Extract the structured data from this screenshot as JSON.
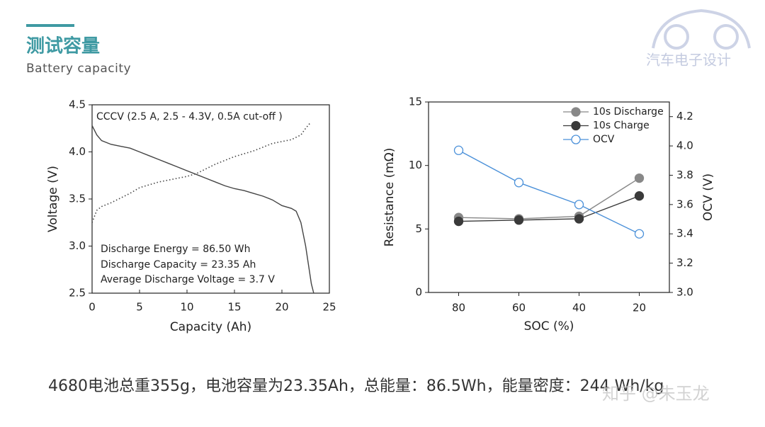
{
  "header": {
    "title": "测试容量",
    "subtitle": "Battery  capacity"
  },
  "logo": {
    "text": "汽车电子设计"
  },
  "caption": "4680电池总重355g，电池容量为23.35Ah，总能量：86.5Wh，能量密度：244 Wh/kg",
  "watermark": "知乎 @朱玉龙",
  "chart_data": [
    {
      "type": "line",
      "xlabel": "Capacity (Ah)",
      "ylabel": "Voltage (V)",
      "xlim": [
        0,
        25
      ],
      "ylim": [
        2.5,
        4.5
      ],
      "xticks": [
        0,
        5,
        10,
        15,
        20,
        25
      ],
      "yticks": [
        {
          "value": 2.5,
          "label": "2.5"
        },
        {
          "value": 3,
          "label": "3.0"
        },
        3.5,
        {
          "value": 4,
          "label": "4.0"
        },
        4.5
      ],
      "annotations": [
        "CCCV (2.5 A, 2.5 - 4.3V, 0.5A cut-off )",
        "Discharge Energy = 86.50 Wh",
        "Discharge Capacity = 23.35 Ah",
        "Average Discharge Voltage = 3.7 V"
      ],
      "series": [
        {
          "color": "#444444",
          "dash": "solid",
          "x": [
            0,
            0.5,
            1,
            2,
            3,
            4,
            5,
            6,
            7,
            8,
            9,
            10,
            11,
            12,
            13,
            14,
            15,
            16,
            17,
            18,
            19,
            20,
            21,
            21.5,
            22,
            22.5,
            22.8,
            23.1,
            23.35
          ],
          "values": [
            4.28,
            4.18,
            4.12,
            4.08,
            4.06,
            4.04,
            4.0,
            3.96,
            3.92,
            3.88,
            3.84,
            3.8,
            3.76,
            3.72,
            3.68,
            3.64,
            3.61,
            3.59,
            3.56,
            3.53,
            3.49,
            3.43,
            3.4,
            3.37,
            3.25,
            3.0,
            2.8,
            2.6,
            2.5
          ]
        },
        {
          "color": "#444444",
          "dash": "dotted",
          "x": [
            0,
            0.5,
            1,
            2,
            3,
            4,
            5,
            6,
            7,
            8,
            9,
            10,
            11,
            12,
            13,
            14,
            15,
            16,
            17,
            18,
            19,
            20,
            21,
            22,
            22.5,
            23
          ],
          "values": [
            3.25,
            3.38,
            3.42,
            3.46,
            3.51,
            3.56,
            3.62,
            3.65,
            3.68,
            3.7,
            3.72,
            3.74,
            3.77,
            3.82,
            3.87,
            3.91,
            3.95,
            3.98,
            4.01,
            4.05,
            4.09,
            4.11,
            4.13,
            4.18,
            4.25,
            4.31
          ]
        }
      ]
    },
    {
      "type": "line",
      "xlabel": "SOC (%)",
      "ylabel": "Resistance (mΩ)",
      "y2label": "OCV (V)",
      "categories": [
        "80",
        "60",
        "40",
        "20"
      ],
      "ylim": [
        0,
        15
      ],
      "yticks": [
        0,
        5,
        10,
        15
      ],
      "y2lim": [
        3.0,
        4.3
      ],
      "y2ticks": [
        {
          "value": 3,
          "label": "3.0"
        },
        3.2,
        3.4,
        3.6,
        3.8,
        {
          "value": 4,
          "label": "4.0"
        },
        4.2
      ],
      "series": [
        {
          "name": "10s Discharge",
          "color": "#888888",
          "marker": "filled",
          "values": [
            5.9,
            5.8,
            6.0,
            9.0
          ]
        },
        {
          "name": "10s Charge",
          "color": "#3a3a3a",
          "marker": "filled",
          "values": [
            5.6,
            5.7,
            5.8,
            7.6
          ]
        },
        {
          "name": "OCV",
          "color": "#4a90d9",
          "marker": "open",
          "axis": "y2",
          "values": [
            3.97,
            3.75,
            3.6,
            3.4
          ]
        }
      ]
    }
  ]
}
